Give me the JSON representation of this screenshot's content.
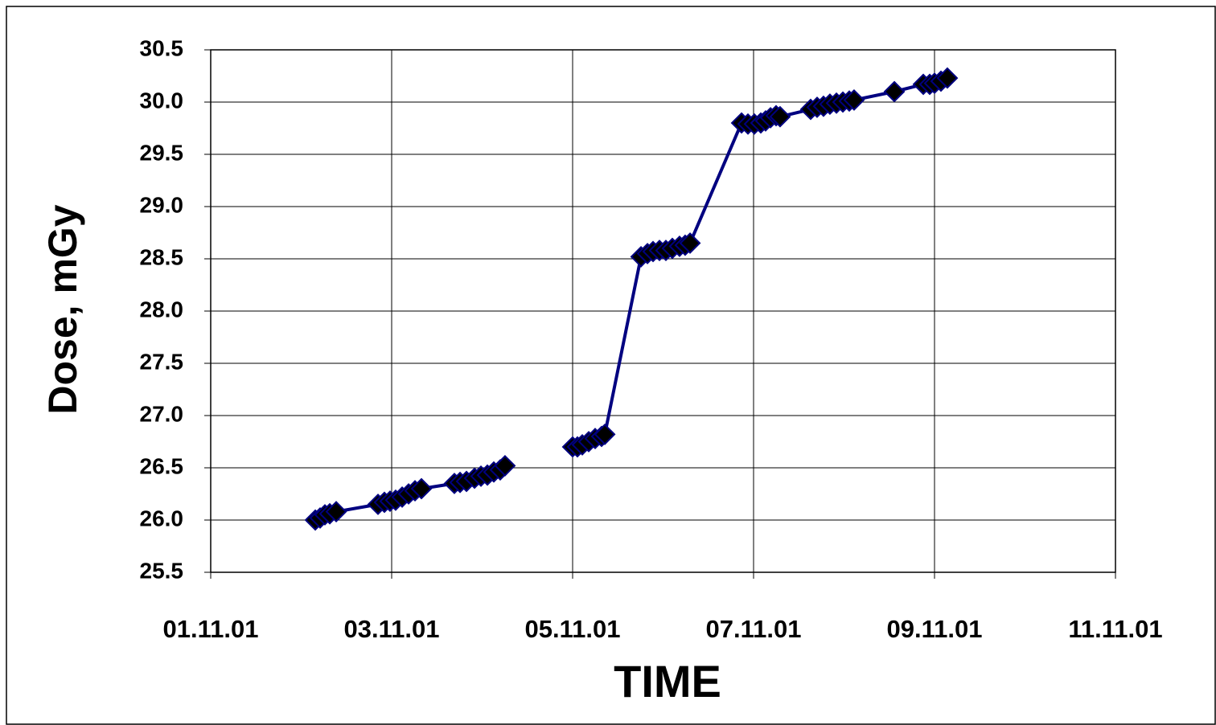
{
  "chart_data": {
    "type": "line",
    "x_label": "TIME",
    "y_label": "Dose, mGy",
    "x": [
      2.156,
      2.209,
      2.262,
      2.316,
      2.387,
      2.849,
      2.92,
      2.982,
      3.044,
      3.116,
      3.187,
      3.258,
      3.329,
      3.693,
      3.756,
      3.827,
      3.916,
      3.987,
      4.058,
      4.129,
      4.2,
      4.253,
      null,
      5.0,
      5.053,
      5.107,
      5.178,
      5.249,
      5.32,
      5.356,
      5.756,
      5.827,
      5.889,
      5.96,
      6.031,
      6.102,
      6.182,
      6.244,
      6.298,
      6.867,
      6.938,
      7.009,
      7.08,
      7.133,
      7.187,
      7.249,
      7.293,
      7.631,
      7.702,
      7.773,
      7.844,
      7.916,
      7.987,
      8.058,
      8.111,
      8.556,
      8.876,
      8.947,
      9.0,
      9.071,
      9.142
    ],
    "series": [
      {
        "color": "#000080",
        "marker_color": "#000000",
        "values": [
          26.0,
          26.02,
          26.05,
          26.06,
          26.08,
          26.15,
          26.17,
          26.18,
          26.19,
          26.22,
          26.25,
          26.28,
          26.3,
          26.35,
          26.36,
          26.37,
          26.4,
          26.42,
          26.43,
          26.46,
          26.48,
          26.52,
          null,
          26.7,
          26.7,
          26.72,
          26.75,
          26.78,
          26.8,
          26.82,
          28.52,
          28.55,
          28.57,
          28.58,
          28.58,
          28.6,
          28.62,
          28.63,
          28.65,
          29.8,
          29.79,
          29.79,
          29.8,
          29.82,
          29.85,
          29.87,
          29.86,
          29.93,
          29.95,
          29.96,
          29.98,
          29.99,
          30.0,
          30.01,
          30.02,
          30.1,
          30.17,
          30.17,
          30.18,
          30.2,
          30.23
        ]
      }
    ],
    "xlim": [
      1,
      11
    ],
    "xticks": [
      {
        "value": 1,
        "label": "01.11.01"
      },
      {
        "value": 3,
        "label": "03.11.01"
      },
      {
        "value": 5,
        "label": "05.11.01"
      },
      {
        "value": 7,
        "label": "07.11.01"
      },
      {
        "value": 9,
        "label": "09.11.01"
      },
      {
        "value": 11,
        "label": "11.11.01"
      }
    ],
    "ylim": [
      25.5,
      30.5
    ],
    "yticks": [
      25.5,
      {
        "value": 26,
        "label": "26.0"
      },
      26.5,
      {
        "value": 27,
        "label": "27.0"
      },
      27.5,
      {
        "value": 28,
        "label": "28.0"
      },
      28.5,
      {
        "value": 29,
        "label": "29.0"
      },
      29.5,
      {
        "value": 30,
        "label": "30.0"
      },
      30.5
    ],
    "grid": true
  }
}
